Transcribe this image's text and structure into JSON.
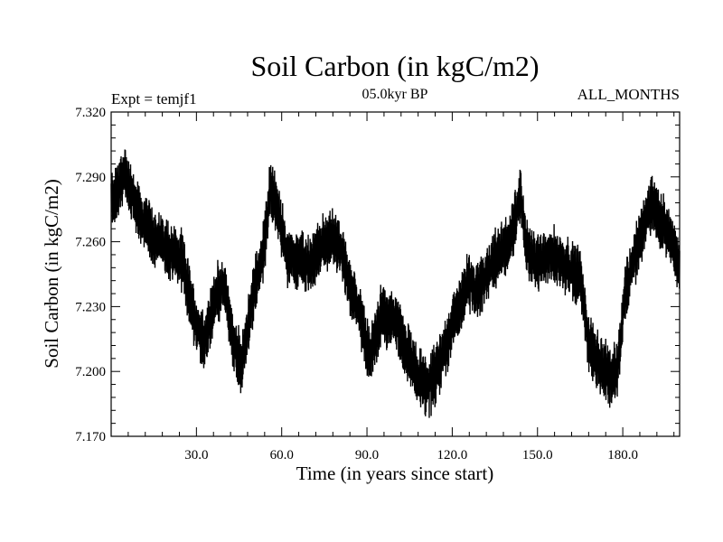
{
  "chart_data": {
    "type": "line",
    "title": "Soil Carbon (in kgC/m2)",
    "subtitle": "05.0kyr BP",
    "expt_label": "Expt = temjf1",
    "months_label": "ALL_MONTHS",
    "xlabel": "Time (in years since start)",
    "ylabel": "Soil Carbon (in kgC/m2)",
    "xlim": [
      0,
      200
    ],
    "ylim": [
      7.17,
      7.32
    ],
    "x_ticks": [
      30,
      60,
      90,
      120,
      150,
      180
    ],
    "x_tick_labels": [
      "30.0",
      "60.0",
      "90.0",
      "120.0",
      "150.0",
      "180.0"
    ],
    "y_ticks": [
      7.17,
      7.2,
      7.23,
      7.26,
      7.29,
      7.32
    ],
    "y_tick_labels": [
      "7.170",
      "7.200",
      "7.230",
      "7.260",
      "7.290",
      "7.320"
    ],
    "series": [
      {
        "name": "Soil Carbon",
        "resolution": "monthly",
        "trend_x": [
          0,
          5,
          10,
          15,
          20,
          25,
          30,
          33,
          37,
          40,
          43,
          46,
          50,
          54,
          56,
          58,
          62,
          66,
          70,
          74,
          78,
          80,
          84,
          88,
          91,
          95,
          100,
          104,
          108,
          112,
          116,
          120,
          125,
          130,
          135,
          140,
          144,
          146,
          150,
          155,
          160,
          165,
          168,
          172,
          176,
          178,
          181,
          185,
          190,
          195,
          200
        ],
        "trend_y": [
          7.279,
          7.291,
          7.272,
          7.262,
          7.257,
          7.251,
          7.221,
          7.214,
          7.236,
          7.239,
          7.212,
          7.203,
          7.236,
          7.258,
          7.287,
          7.277,
          7.254,
          7.252,
          7.249,
          7.258,
          7.262,
          7.258,
          7.24,
          7.223,
          7.206,
          7.226,
          7.224,
          7.21,
          7.197,
          7.193,
          7.205,
          7.221,
          7.24,
          7.239,
          7.252,
          7.259,
          7.281,
          7.258,
          7.25,
          7.254,
          7.249,
          7.244,
          7.213,
          7.204,
          7.196,
          7.201,
          7.238,
          7.256,
          7.279,
          7.266,
          7.249
        ],
        "noise_amplitude": 0.012
      }
    ]
  }
}
